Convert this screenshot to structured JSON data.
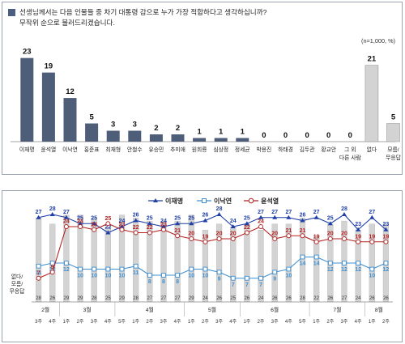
{
  "colors": {
    "bar_main": "#4e5d78",
    "bar_neutral": "#d3d3d3",
    "line_lee_jm": "#1f3fa6",
    "line_lee_ny": "#3f8fd0",
    "line_yoon": "#b22222",
    "text_dark": "#222222"
  },
  "top_panel": {
    "question_line1": "선생님께서는 다음 인물들 중 차기 대통령 감으로 누가 가장 적합하다고 생각하십니까?",
    "question_line2": "무작위 순으로 불러드리겠습니다.",
    "note": "(n=1,000, %)"
  },
  "chart_data": [
    {
      "type": "bar",
      "categories": [
        "이재명",
        "윤석열",
        "이낙연",
        "홍준표",
        "최재형",
        "안철수",
        "유승민",
        "추미애",
        "원희룡",
        "심상정",
        "정세균",
        "박용진",
        "하태경",
        "김두관",
        "황교안",
        "그 외|다른 사람",
        "없다",
        "모름/|무응답"
      ],
      "values": [
        23,
        19,
        12,
        5,
        3,
        3,
        2,
        2,
        1,
        1,
        1,
        0,
        0,
        0,
        0,
        0,
        21,
        5
      ],
      "highlight_gray": [
        "없다",
        "모름/|무응답"
      ],
      "ylim": [
        0,
        25
      ]
    },
    {
      "type": "line",
      "legend": [
        "이재명",
        "이낙연",
        "윤석열"
      ],
      "x_weeks": [
        "3주",
        "4주",
        "1주",
        "2주",
        "3주",
        "4주",
        "5주",
        "1주",
        "2주",
        "3주",
        "4주",
        "1주",
        "2주",
        "3주",
        "4주",
        "1주",
        "2주",
        "3주",
        "4주",
        "5주",
        "1주",
        "2주",
        "3주",
        "4주",
        "1주",
        "2주"
      ],
      "x_months": [
        {
          "label": "2월",
          "start": 0
        },
        {
          "label": "3월",
          "start": 2
        },
        {
          "label": "4월",
          "start": 6
        },
        {
          "label": "5월",
          "start": 11
        },
        {
          "label": "6월",
          "start": 15
        },
        {
          "label": "7월",
          "start": 20
        },
        {
          "label": "8월",
          "start": 24
        }
      ],
      "series": [
        {
          "name": "이재명",
          "values": [
            27,
            28,
            27,
            25,
            25,
            22,
            24,
            26,
            25,
            24,
            25,
            25,
            26,
            28,
            24,
            25,
            27,
            27,
            27,
            26,
            27,
            25,
            28,
            23,
            27,
            23
          ]
        },
        {
          "name": "이낙연",
          "values": [
            11,
            12,
            12,
            10,
            10,
            10,
            10,
            11,
            8,
            8,
            8,
            10,
            10,
            9,
            7,
            7,
            7,
            9,
            10,
            14,
            14,
            12,
            12,
            12,
            10,
            12
          ]
        },
        {
          "name": "윤석열",
          "values": [
            7,
            9,
            24,
            24,
            23,
            25,
            23,
            22,
            22,
            23,
            21,
            20,
            19,
            20,
            20,
            22,
            24,
            20,
            21,
            21,
            19,
            20,
            20,
            19,
            19,
            19
          ]
        }
      ],
      "bars_label": "없다/|모름/|무응답",
      "bars": [
        28,
        26,
        29,
        29,
        28,
        25,
        29,
        28,
        27,
        27,
        27,
        29,
        24,
        26,
        25,
        26,
        24,
        26,
        26,
        28,
        22,
        26,
        27,
        24,
        26,
        26
      ],
      "ylim": [
        0,
        40
      ]
    }
  ]
}
